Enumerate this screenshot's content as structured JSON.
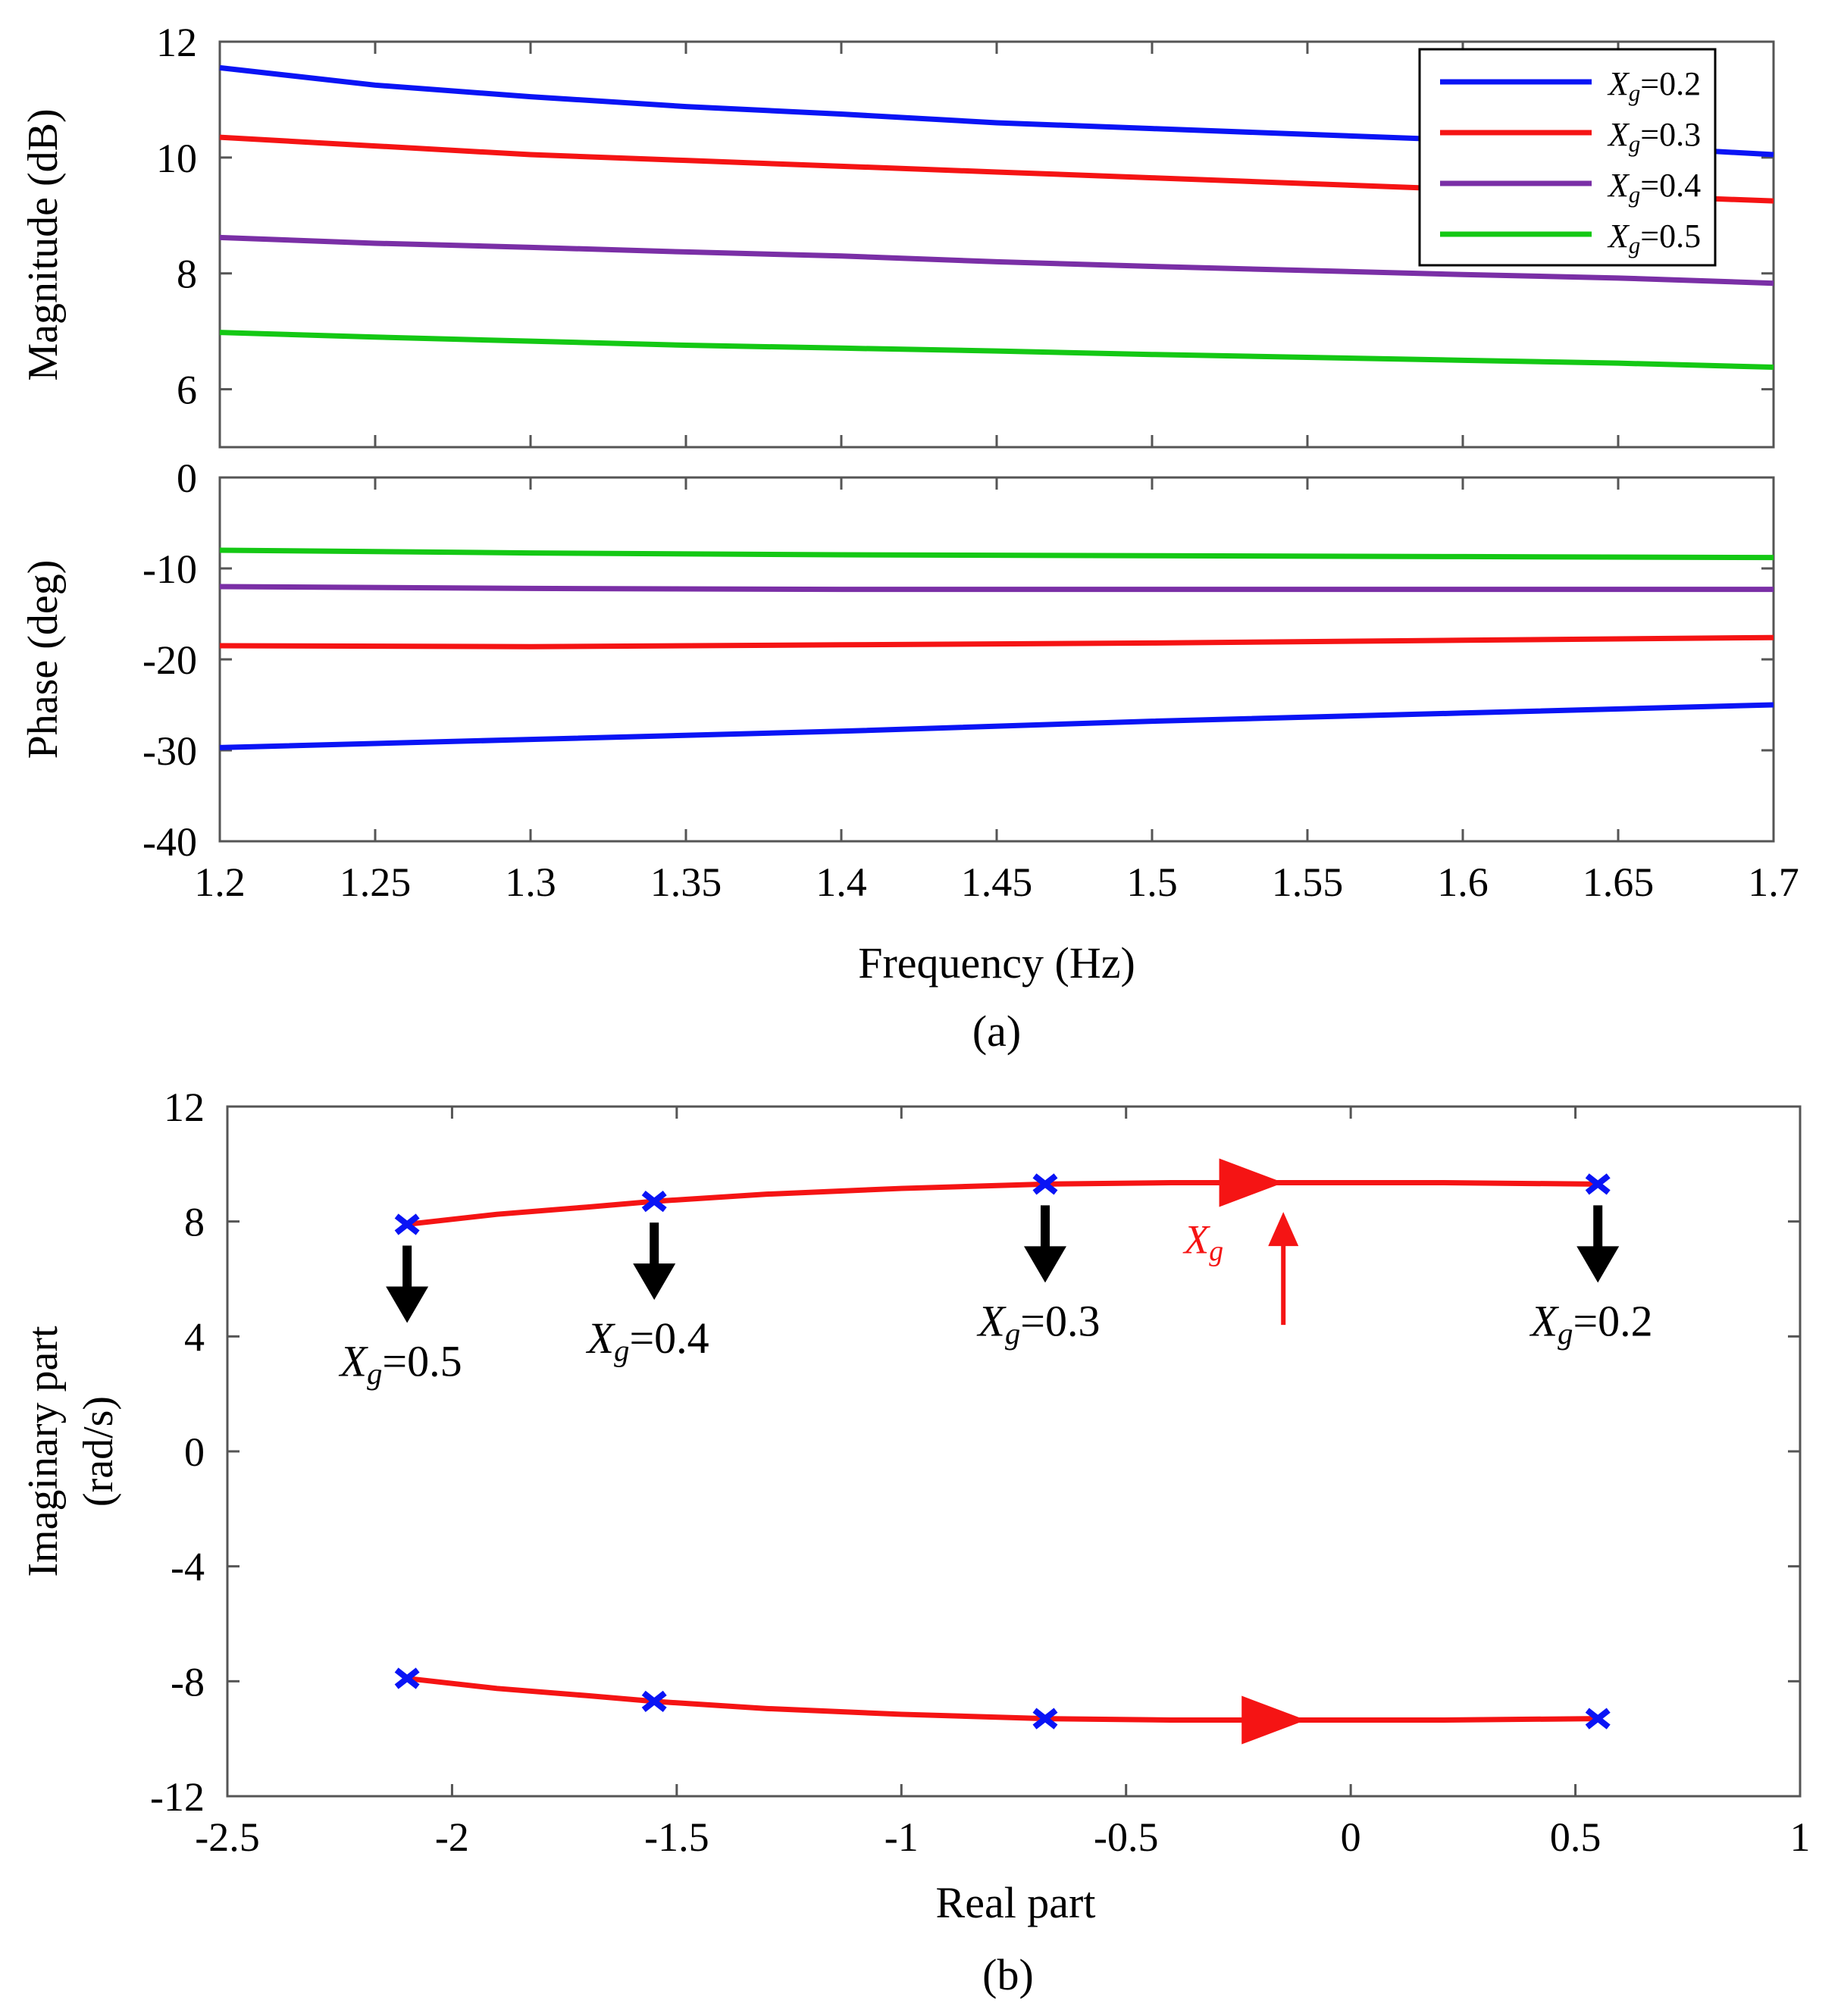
{
  "colors": {
    "blue": "#0a14f5",
    "red": "#f51414",
    "purple": "#7a2fa6",
    "green": "#14c814",
    "black": "#000000",
    "axis": "#555555"
  },
  "chart_data": [
    {
      "id": "magnitude",
      "type": "line",
      "xlabel": "",
      "ylabel": "Magnitude  (dB)",
      "xlim": [
        1.2,
        1.7
      ],
      "ylim": [
        5,
        12
      ],
      "yticks": [
        "6",
        "8",
        "10",
        "12"
      ],
      "grid": false,
      "legend_position": "top-right",
      "series": [
        {
          "name": "Xg=0.2",
          "sub_prefix": "X",
          "sub": "g",
          "suffix": "=0.2",
          "color": "#0a14f5",
          "x": [
            1.2,
            1.25,
            1.3,
            1.35,
            1.4,
            1.45,
            1.5,
            1.55,
            1.6,
            1.65,
            1.7
          ],
          "y": [
            11.55,
            11.25,
            11.05,
            10.88,
            10.75,
            10.6,
            10.5,
            10.4,
            10.3,
            10.2,
            10.05
          ]
        },
        {
          "name": "Xg=0.3",
          "sub_prefix": "X",
          "sub": "g",
          "suffix": "=0.3",
          "color": "#f51414",
          "x": [
            1.2,
            1.25,
            1.3,
            1.35,
            1.4,
            1.45,
            1.5,
            1.55,
            1.6,
            1.65,
            1.7
          ],
          "y": [
            10.35,
            10.2,
            10.05,
            9.95,
            9.85,
            9.75,
            9.65,
            9.55,
            9.45,
            9.35,
            9.25
          ]
        },
        {
          "name": "Xg=0.4",
          "sub_prefix": "X",
          "sub": "g",
          "suffix": "=0.4",
          "color": "#7a2fa6",
          "x": [
            1.2,
            1.25,
            1.3,
            1.35,
            1.4,
            1.45,
            1.5,
            1.55,
            1.6,
            1.65,
            1.7
          ],
          "y": [
            8.62,
            8.52,
            8.45,
            8.37,
            8.3,
            8.2,
            8.12,
            8.05,
            7.98,
            7.92,
            7.83
          ]
        },
        {
          "name": "Xg=0.5",
          "sub_prefix": "X",
          "sub": "g",
          "suffix": "=0.5",
          "color": "#14c814",
          "x": [
            1.2,
            1.25,
            1.3,
            1.35,
            1.4,
            1.45,
            1.5,
            1.55,
            1.6,
            1.65,
            1.7
          ],
          "y": [
            6.98,
            6.9,
            6.83,
            6.76,
            6.71,
            6.66,
            6.6,
            6.55,
            6.5,
            6.45,
            6.38
          ]
        }
      ]
    },
    {
      "id": "phase",
      "type": "line",
      "xlabel": "Frequency  (Hz)",
      "ylabel": "Phase  (deg)",
      "xlim": [
        1.2,
        1.7
      ],
      "ylim": [
        -40,
        0
      ],
      "xticks": [
        "1.2",
        "1.25",
        "1.3",
        "1.35",
        "1.4",
        "1.45",
        "1.5",
        "1.55",
        "1.6",
        "1.65",
        "1.7"
      ],
      "yticks": [
        "-40",
        "-30",
        "-20",
        "-10",
        "0"
      ],
      "grid": false,
      "series": [
        {
          "color": "#0a14f5",
          "x": [
            1.2,
            1.3,
            1.4,
            1.5,
            1.6,
            1.7
          ],
          "y": [
            -29.7,
            -28.8,
            -27.9,
            -26.8,
            -25.9,
            -25.0
          ]
        },
        {
          "color": "#f51414",
          "x": [
            1.2,
            1.3,
            1.4,
            1.5,
            1.6,
            1.7
          ],
          "y": [
            -18.5,
            -18.6,
            -18.4,
            -18.2,
            -17.9,
            -17.6
          ]
        },
        {
          "color": "#7a2fa6",
          "x": [
            1.2,
            1.3,
            1.4,
            1.5,
            1.6,
            1.7
          ],
          "y": [
            -12.0,
            -12.2,
            -12.3,
            -12.3,
            -12.3,
            -12.3
          ]
        },
        {
          "color": "#14c814",
          "x": [
            1.2,
            1.3,
            1.4,
            1.5,
            1.6,
            1.7
          ],
          "y": [
            -8.0,
            -8.3,
            -8.5,
            -8.6,
            -8.7,
            -8.8
          ]
        }
      ]
    },
    {
      "id": "root-locus",
      "type": "scatter",
      "xlabel": "Real part",
      "ylabel_line1": "Imaginary part",
      "ylabel_line2": "(rad/s)",
      "xlim": [
        -2.5,
        1
      ],
      "ylim": [
        -12,
        12
      ],
      "xticks": [
        "-2.5",
        "-2",
        "-1.5",
        "-1",
        "-0.5",
        "0",
        "0.5",
        "1"
      ],
      "yticks": [
        "-12",
        "-8",
        "-4",
        "0",
        "4",
        "8",
        "12"
      ],
      "grid": false,
      "locus_color": "#f51414",
      "marker_color": "#0a14f5",
      "poles_upper": [
        [
          -2.1,
          7.9
        ],
        [
          -1.55,
          8.7
        ],
        [
          -0.68,
          9.3
        ],
        [
          0.55,
          9.3
        ]
      ],
      "poles_lower": [
        [
          -2.1,
          -7.9
        ],
        [
          -1.55,
          -8.7
        ],
        [
          -0.68,
          -9.3
        ],
        [
          0.55,
          -9.3
        ]
      ],
      "curve_upper": {
        "x": [
          -2.1,
          -1.9,
          -1.7,
          -1.55,
          -1.3,
          -1.0,
          -0.68,
          -0.4,
          -0.1,
          0.2,
          0.55
        ],
        "y": [
          7.9,
          8.25,
          8.5,
          8.7,
          8.95,
          9.15,
          9.3,
          9.35,
          9.35,
          9.35,
          9.3
        ]
      },
      "curve_lower": {
        "x": [
          -2.1,
          -1.9,
          -1.7,
          -1.55,
          -1.3,
          -1.0,
          -0.68,
          -0.4,
          -0.1,
          0.2,
          0.55
        ],
        "y": [
          -7.9,
          -8.25,
          -8.5,
          -8.7,
          -8.95,
          -9.15,
          -9.3,
          -9.35,
          -9.35,
          -9.35,
          -9.3
        ]
      },
      "direction_arrows": [
        [
          -0.2,
          9.35
        ],
        [
          -0.15,
          -9.35
        ]
      ],
      "xg_marker": {
        "label_prefix": "X",
        "label_sub": "g",
        "x": -0.15
      },
      "annotations": [
        {
          "prefix": "X",
          "sub": "g",
          "suffix": "=0.5"
        },
        {
          "prefix": "X",
          "sub": "g",
          "suffix": "=0.4"
        },
        {
          "prefix": "X",
          "sub": "g",
          "suffix": "=0.3"
        },
        {
          "prefix": "X",
          "sub": "g",
          "suffix": "=0.2"
        }
      ]
    }
  ],
  "captions": {
    "a": "(a)",
    "b": "(b)"
  }
}
